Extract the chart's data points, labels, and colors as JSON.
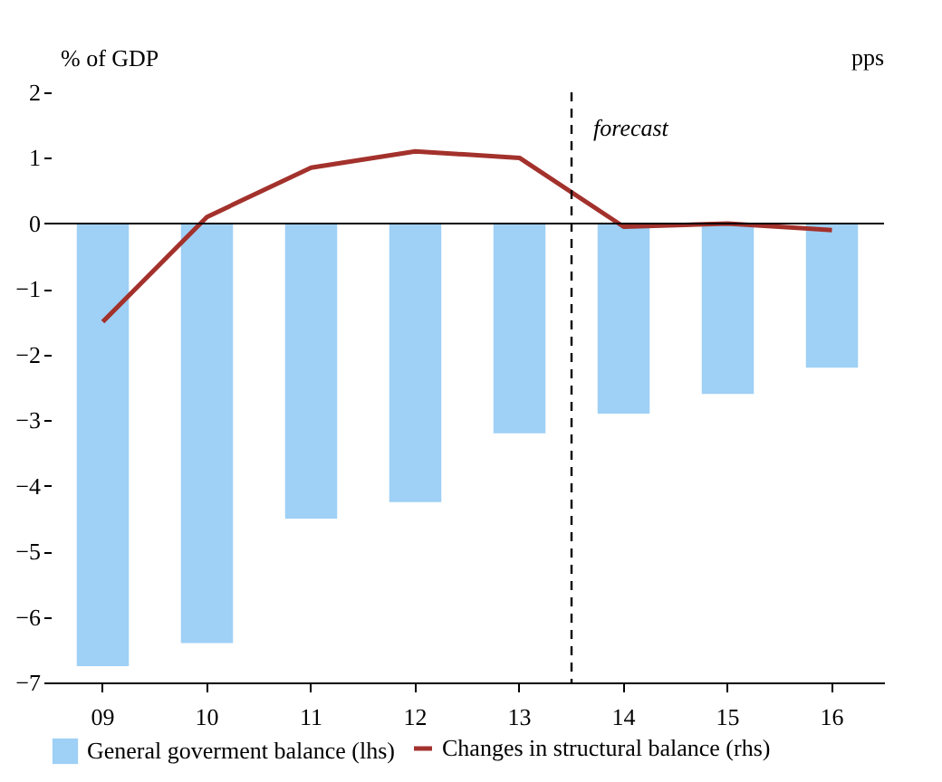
{
  "chart_data": {
    "type": "bar",
    "ylabel": "% of GDP",
    "categories": [
      "09",
      "10",
      "11",
      "12",
      "13",
      "14",
      "15",
      "16"
    ],
    "series": [
      {
        "name": "General goverment balance (lhs)",
        "type": "bar",
        "color": "#9fd0f5",
        "values": [
          -6.75,
          -6.4,
          -4.5,
          -4.25,
          -3.2,
          -2.9,
          -2.6,
          -2.2
        ]
      },
      {
        "name": "Changes in structural balance (rhs)",
        "type": "line",
        "color": "#a3312c",
        "values": [
          -1.5,
          0.1,
          0.85,
          1.1,
          1.0,
          -0.05,
          0.0,
          -0.1
        ]
      }
    ],
    "ylim": [
      -7,
      2
    ],
    "yticks": [
      -7,
      -6,
      -5,
      -4,
      -3,
      -2,
      -1,
      0,
      1,
      2
    ],
    "ref_lines": [
      {
        "axis": "y",
        "value": 0,
        "color": "#000000",
        "line_style": "solid"
      },
      {
        "axis": "x",
        "value": "14",
        "label": "forecast",
        "color": "#000000",
        "line_style": "dashed"
      }
    ],
    "annotations": [
      "pps"
    ],
    "grid": false,
    "legend": "bottom"
  }
}
